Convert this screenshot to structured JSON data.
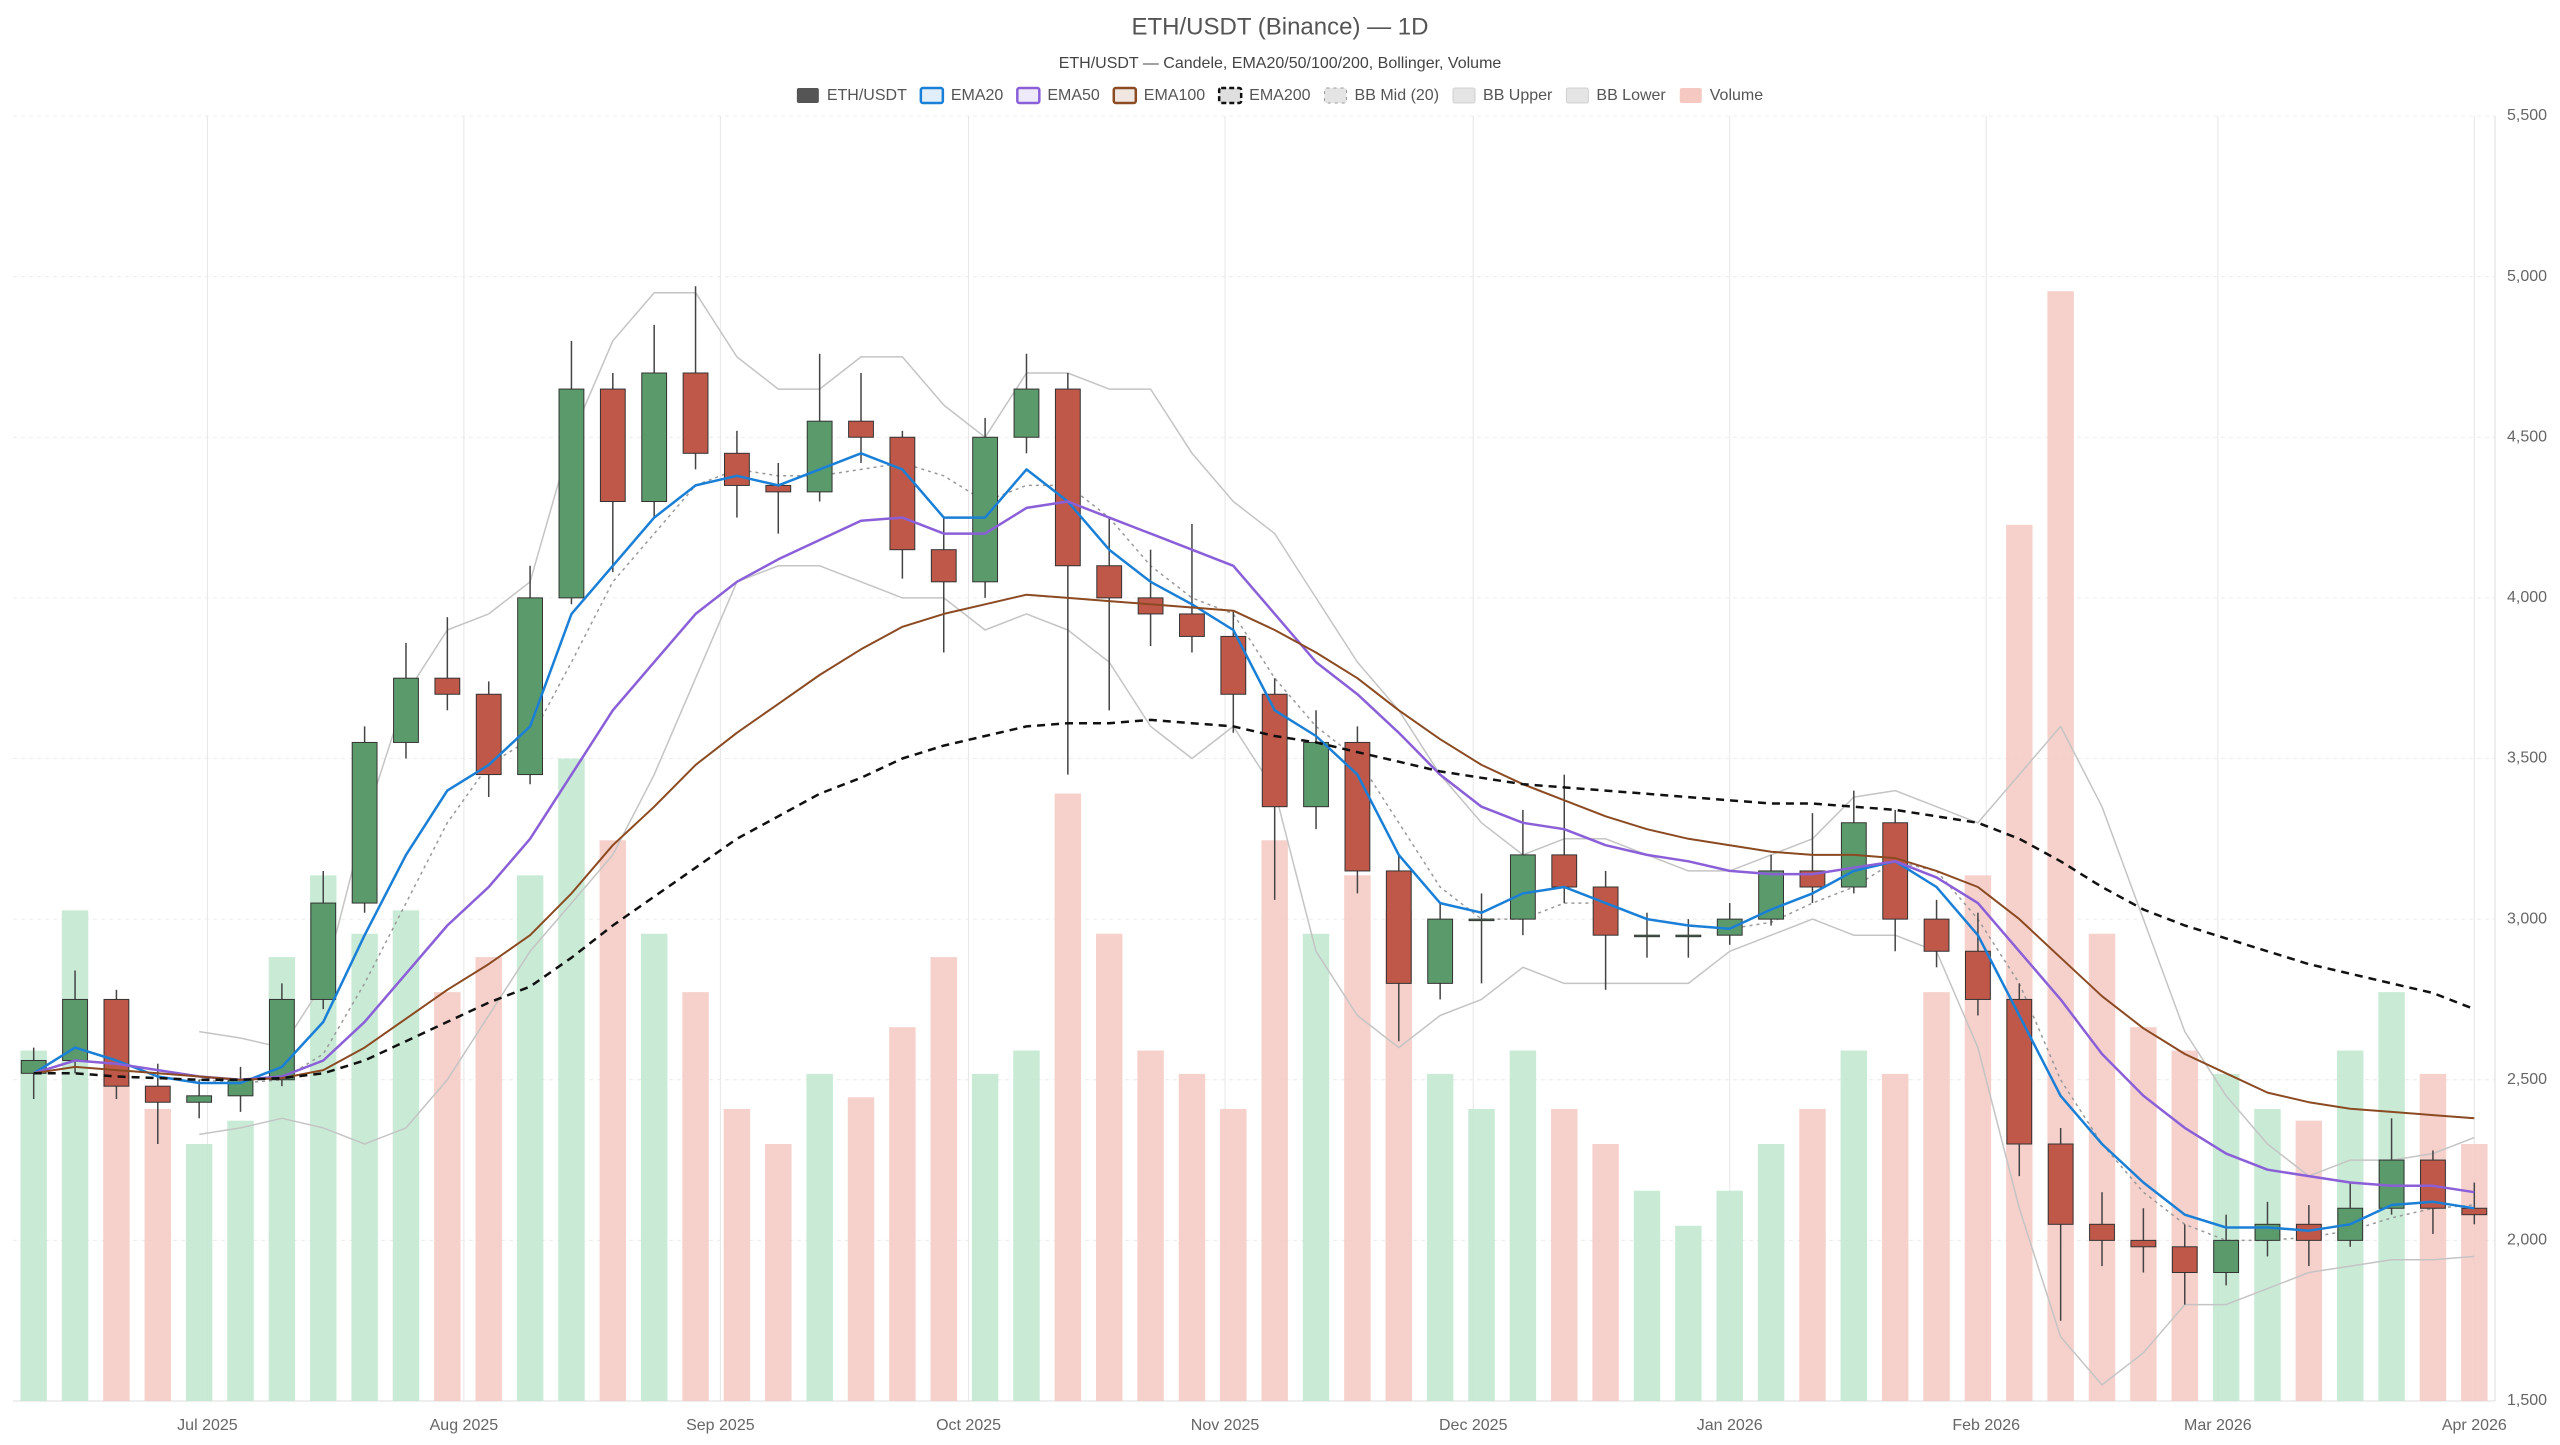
{
  "chart_data": {
    "type": "candlestick",
    "title": "ETH/USDT (Binance) — 1D",
    "subtitle": "ETH/USDT — Candele, EMA20/50/100/200, Bollinger, Volume",
    "xlim": [
      -0.5,
      59.5
    ],
    "xticks": [
      {
        "value": 4.2,
        "label": "Jul 2025"
      },
      {
        "value": 10.4,
        "label": "Aug 2025"
      },
      {
        "value": 16.6,
        "label": "Sep 2025"
      },
      {
        "value": 22.6,
        "label": "Oct 2025"
      },
      {
        "value": 28.8,
        "label": "Nov 2025"
      },
      {
        "value": 34.8,
        "label": "Dec 2025"
      },
      {
        "value": 41,
        "label": "Jan 2026"
      },
      {
        "value": 47.2,
        "label": "Feb 2026"
      },
      {
        "value": 52.8,
        "label": "Mar 2026"
      },
      {
        "value": 59,
        "label": "Apr 2026"
      }
    ],
    "ylim": [
      1500,
      5500
    ],
    "yticks": [
      {
        "value": 1500,
        "label": "1,500"
      },
      {
        "value": 2000,
        "label": "2,000"
      },
      {
        "value": 2500,
        "label": "2,500"
      },
      {
        "value": 3000,
        "label": "3,000"
      },
      {
        "value": 3500,
        "label": "3,500"
      },
      {
        "value": 4000,
        "label": "4,000"
      },
      {
        "value": 4500,
        "label": "4,500"
      },
      {
        "value": 5000,
        "label": "5,000"
      },
      {
        "value": 5500,
        "label": "5,500"
      }
    ],
    "y2lim": [
      0,
      110
    ],
    "grid": true,
    "legend": "top",
    "series": [
      {
        "name": "ETH/USDT",
        "type": "candlestick",
        "color": "#555555",
        "up_color": "#5b9a6b",
        "down_color": "#c0584a",
        "open": [
          2520,
          2560,
          2750,
          2480,
          2430,
          2450,
          2500,
          2750,
          3050,
          3550,
          3750,
          3700,
          3450,
          4000,
          4650,
          4300,
          4700,
          4450,
          4350,
          4330,
          4550,
          4500,
          4150,
          4050,
          4500,
          4650,
          4100,
          4000,
          3950,
          3880,
          3700,
          3350,
          3550,
          3150,
          2800,
          3000,
          3000,
          3200,
          3100,
          2950,
          2950,
          2950,
          3000,
          3150,
          3100,
          3300,
          3000,
          2900,
          2750,
          2300,
          2050,
          2000,
          1980,
          1900,
          2000,
          2050,
          2000,
          2100,
          2250,
          2100
        ],
        "high": [
          2600,
          2840,
          2780,
          2550,
          2500,
          2540,
          2800,
          3150,
          3600,
          3860,
          3940,
          3740,
          4100,
          4800,
          4700,
          4850,
          4970,
          4520,
          4420,
          4760,
          4700,
          4520,
          4250,
          4560,
          4760,
          4700,
          4250,
          4150,
          4230,
          3960,
          3750,
          3650,
          3600,
          3200,
          3050,
          3080,
          3340,
          3450,
          3150,
          3020,
          3000,
          3050,
          3200,
          3330,
          3400,
          3340,
          3060,
          3020,
          2800,
          2350,
          2150,
          2100,
          2050,
          2080,
          2120,
          2110,
          2180,
          2380,
          2280,
          2180
        ],
        "low": [
          2440,
          2520,
          2440,
          2300,
          2380,
          2400,
          2480,
          2720,
          3020,
          3500,
          3650,
          3380,
          3420,
          3980,
          4080,
          4250,
          4400,
          4250,
          4200,
          4300,
          4420,
          4060,
          3830,
          4000,
          4450,
          3450,
          3650,
          3850,
          3830,
          3580,
          3060,
          3280,
          3080,
          2620,
          2750,
          2800,
          2950,
          3050,
          2780,
          2880,
          2880,
          2920,
          2980,
          3050,
          3080,
          2900,
          2850,
          2700,
          2200,
          1750,
          1920,
          1900,
          1800,
          1860,
          1950,
          1920,
          1980,
          2080,
          2020,
          2050
        ],
        "close": [
          2560,
          2750,
          2480,
          2430,
          2450,
          2500,
          2750,
          3050,
          3550,
          3750,
          3700,
          3450,
          4000,
          4650,
          4300,
          4700,
          4450,
          4350,
          4330,
          4550,
          4500,
          4150,
          4050,
          4500,
          4650,
          4100,
          4000,
          3950,
          3880,
          3700,
          3350,
          3550,
          3150,
          2800,
          3000,
          3000,
          3200,
          3100,
          2950,
          2950,
          2950,
          3000,
          3150,
          3100,
          3300,
          3000,
          2900,
          2750,
          2300,
          2050,
          2000,
          1980,
          1900,
          2000,
          2050,
          2000,
          2100,
          2250,
          2100,
          2080
        ]
      },
      {
        "name": "EMA20",
        "type": "line",
        "color": "#1a7fd6",
        "width": 2.5,
        "values": [
          2520,
          2600,
          2560,
          2510,
          2490,
          2490,
          2540,
          2680,
          2950,
          3200,
          3400,
          3480,
          3600,
          3950,
          4100,
          4250,
          4350,
          4380,
          4350,
          4400,
          4450,
          4400,
          4250,
          4250,
          4400,
          4300,
          4150,
          4050,
          3980,
          3900,
          3650,
          3570,
          3450,
          3200,
          3050,
          3020,
          3080,
          3100,
          3050,
          3000,
          2980,
          2970,
          3030,
          3080,
          3150,
          3180,
          3100,
          2950,
          2700,
          2450,
          2300,
          2180,
          2080,
          2040,
          2040,
          2030,
          2050,
          2110,
          2120,
          2100
        ]
      },
      {
        "name": "EMA50",
        "type": "line",
        "color": "#8a5fd8",
        "width": 2.5,
        "values": [
          2520,
          2560,
          2550,
          2530,
          2510,
          2500,
          2510,
          2560,
          2680,
          2830,
          2980,
          3100,
          3250,
          3450,
          3650,
          3800,
          3950,
          4050,
          4120,
          4180,
          4240,
          4250,
          4200,
          4200,
          4280,
          4300,
          4250,
          4200,
          4150,
          4100,
          3950,
          3800,
          3700,
          3580,
          3450,
          3350,
          3300,
          3280,
          3230,
          3200,
          3180,
          3150,
          3140,
          3140,
          3160,
          3180,
          3130,
          3050,
          2900,
          2750,
          2580,
          2450,
          2350,
          2270,
          2220,
          2200,
          2180,
          2170,
          2170,
          2150
        ]
      },
      {
        "name": "EMA100",
        "type": "line",
        "color": "#8b4a22",
        "width": 2,
        "values": [
          2520,
          2540,
          2530,
          2520,
          2510,
          2500,
          2505,
          2530,
          2600,
          2690,
          2780,
          2860,
          2950,
          3080,
          3230,
          3350,
          3480,
          3580,
          3670,
          3760,
          3840,
          3910,
          3950,
          3980,
          4010,
          4000,
          3990,
          3980,
          3970,
          3960,
          3900,
          3830,
          3750,
          3650,
          3560,
          3480,
          3420,
          3370,
          3320,
          3280,
          3250,
          3230,
          3210,
          3200,
          3200,
          3190,
          3150,
          3100,
          3000,
          2880,
          2760,
          2660,
          2580,
          2520,
          2460,
          2430,
          2410,
          2400,
          2390,
          2380
        ]
      },
      {
        "name": "EMA200",
        "type": "line",
        "color": "#111111",
        "width": 2.5,
        "dash": "dashed",
        "values": [
          2520,
          2520,
          2510,
          2505,
          2500,
          2500,
          2505,
          2520,
          2560,
          2620,
          2680,
          2740,
          2790,
          2880,
          2980,
          3070,
          3160,
          3250,
          3320,
          3390,
          3440,
          3500,
          3540,
          3570,
          3600,
          3610,
          3610,
          3620,
          3610,
          3600,
          3570,
          3550,
          3520,
          3490,
          3460,
          3440,
          3420,
          3410,
          3400,
          3390,
          3380,
          3370,
          3360,
          3360,
          3350,
          3340,
          3320,
          3300,
          3250,
          3180,
          3100,
          3030,
          2980,
          2940,
          2900,
          2860,
          2830,
          2800,
          2770,
          2720
        ]
      },
      {
        "name": "BB Mid (20)",
        "type": "line",
        "color": "#999999",
        "width": 1.5,
        "dash": "dotted",
        "values": [
          null,
          null,
          null,
          null,
          2500,
          2490,
          2500,
          2580,
          2800,
          3050,
          3300,
          3480,
          3560,
          3800,
          4050,
          4200,
          4350,
          4400,
          4380,
          4380,
          4400,
          4420,
          4380,
          4300,
          4350,
          4350,
          4250,
          4100,
          4000,
          3950,
          3750,
          3600,
          3500,
          3300,
          3100,
          3000,
          3000,
          3050,
          3050,
          3000,
          2980,
          2970,
          2990,
          3050,
          3100,
          3180,
          3150,
          3000,
          2800,
          2500,
          2300,
          2150,
          2050,
          2000,
          2000,
          2010,
          2030,
          2070,
          2100,
          2110
        ]
      },
      {
        "name": "BB Upper",
        "type": "line",
        "color": "#c4c4c4",
        "width": 1.5,
        "values": [
          null,
          null,
          null,
          null,
          2650,
          2630,
          2600,
          2800,
          3300,
          3700,
          3900,
          3950,
          4050,
          4500,
          4800,
          4950,
          4950,
          4750,
          4650,
          4650,
          4750,
          4750,
          4600,
          4500,
          4700,
          4700,
          4650,
          4650,
          4450,
          4300,
          4200,
          4000,
          3800,
          3650,
          3450,
          3300,
          3200,
          3250,
          3250,
          3200,
          3150,
          3150,
          3200,
          3250,
          3380,
          3400,
          3350,
          3300,
          3450,
          3600,
          3350,
          3000,
          2650,
          2450,
          2300,
          2200,
          2250,
          2250,
          2270,
          2320
        ]
      },
      {
        "name": "BB Lower",
        "type": "line",
        "color": "#c4c4c4",
        "width": 1.5,
        "values": [
          null,
          null,
          null,
          null,
          2330,
          2350,
          2380,
          2350,
          2300,
          2350,
          2500,
          2700,
          2900,
          3050,
          3200,
          3450,
          3750,
          4050,
          4100,
          4100,
          4050,
          4000,
          4000,
          3900,
          3950,
          3900,
          3800,
          3600,
          3500,
          3600,
          3400,
          2900,
          2700,
          2600,
          2700,
          2750,
          2850,
          2800,
          2800,
          2800,
          2800,
          2900,
          2950,
          3000,
          2950,
          2950,
          2900,
          2600,
          2100,
          1700,
          1550,
          1650,
          1800,
          1800,
          1850,
          1900,
          1920,
          1940,
          1940,
          1950
        ]
      },
      {
        "name": "Volume",
        "type": "bar",
        "axis": "y2",
        "color": "#f5c9c2",
        "up_color": "#bfe8cf",
        "down_color": "#f5c9c2",
        "values": [
          30,
          42,
          28,
          25,
          22,
          24,
          38,
          45,
          40,
          42,
          35,
          38,
          45,
          55,
          48,
          40,
          35,
          25,
          22,
          28,
          26,
          32,
          38,
          28,
          30,
          52,
          40,
          30,
          28,
          25,
          48,
          40,
          45,
          42,
          28,
          25,
          30,
          25,
          22,
          18,
          15,
          18,
          22,
          25,
          30,
          28,
          35,
          45,
          75,
          95,
          40,
          32,
          30,
          28,
          25,
          24,
          30,
          35,
          28,
          22
        ]
      }
    ]
  }
}
